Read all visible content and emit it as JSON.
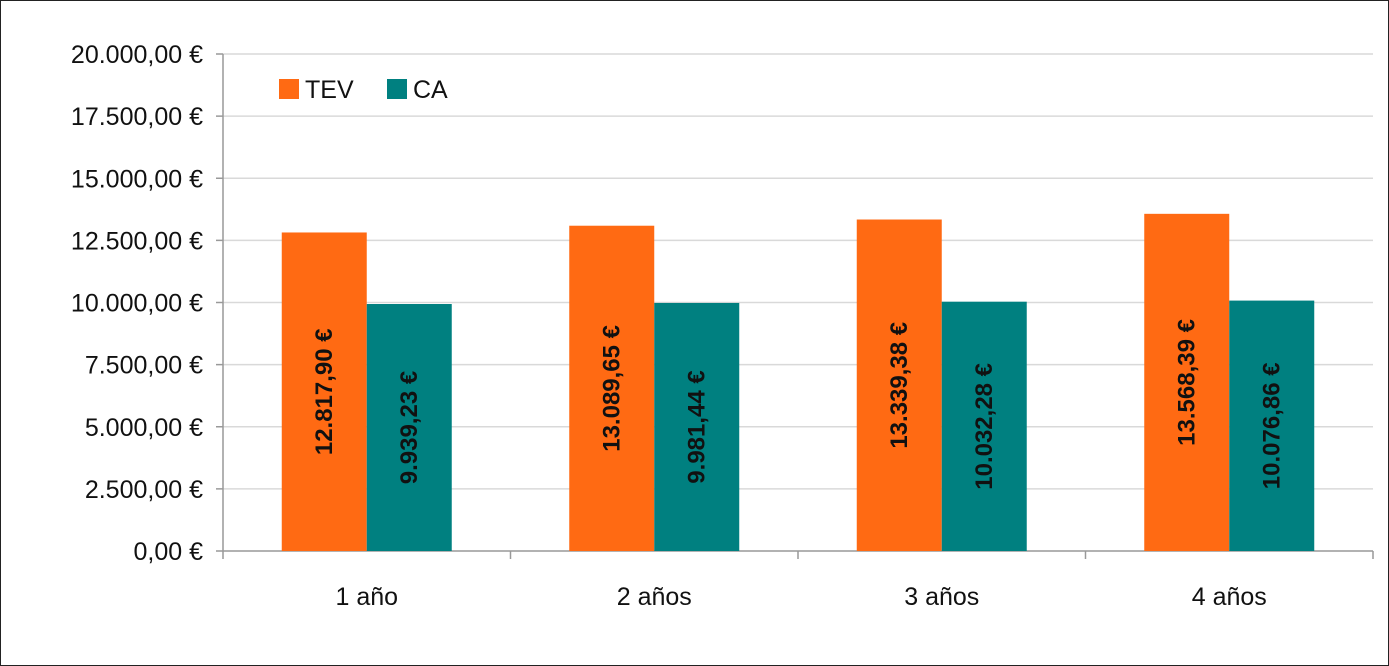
{
  "chart_data": {
    "type": "bar",
    "categories": [
      "1 año",
      "2 años",
      "3 años",
      "4 años"
    ],
    "series": [
      {
        "name": "TEV",
        "color": "#ff6a13",
        "values": [
          12817.9,
          13089.65,
          13339.38,
          13568.39
        ],
        "labels": [
          "12.817,90 €",
          "13.089,65 €",
          "13.339,38 €",
          "13.568,39 €"
        ]
      },
      {
        "name": "CA",
        "color": "#008080",
        "values": [
          9939.23,
          9981.44,
          10032.28,
          10076.86
        ],
        "labels": [
          "9.939,23 €",
          "9.981,44 €",
          "10.032,28 €",
          "10.076,86 €"
        ]
      }
    ],
    "ylim": [
      0,
      20000
    ],
    "yticks": [
      {
        "value": 0,
        "label": "0,00 €"
      },
      {
        "value": 2500,
        "label": "2.500,00 €"
      },
      {
        "value": 5000,
        "label": "5.000,00 €"
      },
      {
        "value": 7500,
        "label": "7.500,00 €"
      },
      {
        "value": 10000,
        "label": "10.000,00 €"
      },
      {
        "value": 12500,
        "label": "12.500,00 €"
      },
      {
        "value": 15000,
        "label": "15.000,00 €"
      },
      {
        "value": 17500,
        "label": "17.500,00 €"
      },
      {
        "value": 20000,
        "label": "20.000,00 €"
      }
    ],
    "title": "",
    "xlabel": "",
    "ylabel": "",
    "grid": true,
    "legend_position": "top-left",
    "gridline_color": "#d9d9d9"
  }
}
